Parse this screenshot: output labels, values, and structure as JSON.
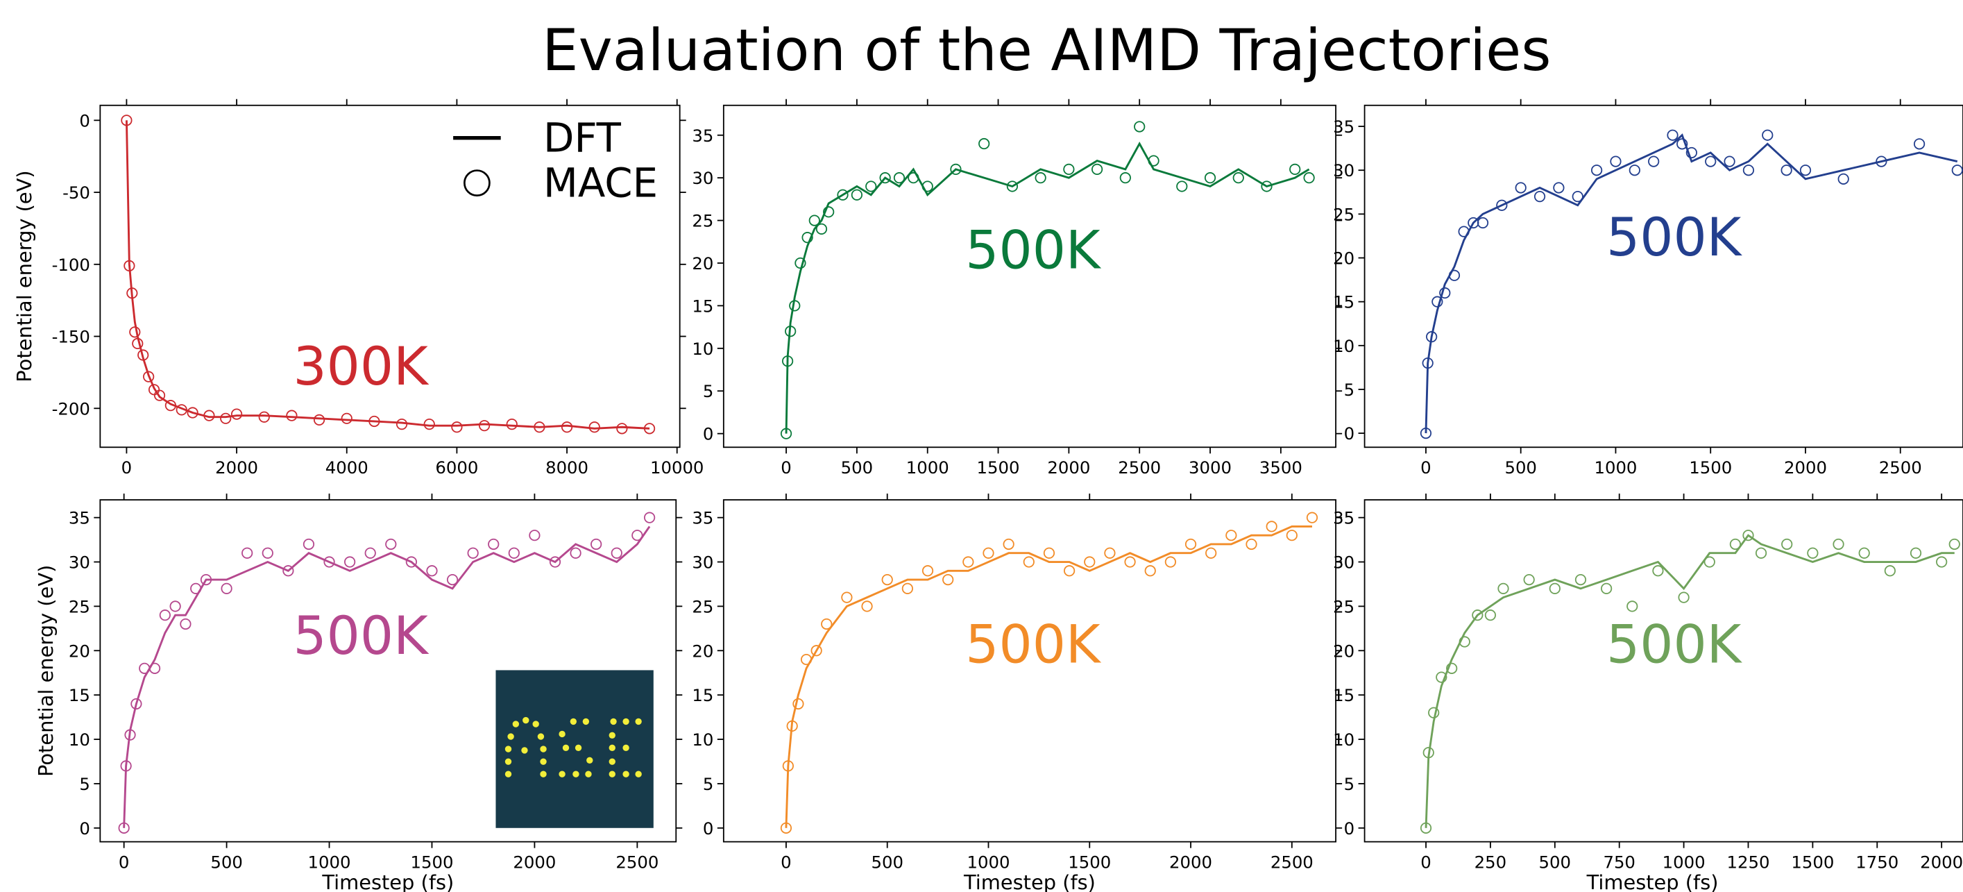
{
  "title": "Evaluation of the AIMD Trajectories",
  "chart_data": [
    {
      "type": "line",
      "annotation": "300K",
      "ylabel": "Potential energy (eV)",
      "legend": "upper right",
      "x": [
        0,
        50,
        100,
        150,
        200,
        300,
        400,
        500,
        600,
        800,
        1000,
        1200,
        1500,
        1800,
        2000,
        2500,
        3000,
        3500,
        4000,
        4500,
        5000,
        5500,
        6000,
        6500,
        7000,
        7500,
        8000,
        8500,
        9000,
        9500
      ],
      "series": [
        {
          "name": "DFT",
          "style": "line",
          "color": "#cc2a2f",
          "values": [
            0,
            -100,
            -122,
            -140,
            -150,
            -165,
            -177,
            -186,
            -192,
            -197,
            -200,
            -203,
            -206,
            -206,
            -205,
            -205,
            -206,
            -207,
            -208,
            -209,
            -210,
            -212,
            -212,
            -211,
            -212,
            -213,
            -212,
            -214,
            -213,
            -214
          ]
        },
        {
          "name": "MACE",
          "style": "marker",
          "color": "#cc2a2f",
          "values": [
            0,
            -101,
            -120,
            -147,
            -155,
            -163,
            -178,
            -187,
            -191,
            -198,
            -201,
            -203,
            -205,
            -207,
            -204,
            -206,
            -205,
            -208,
            -207,
            -209,
            -211,
            -211,
            -213,
            -212,
            -211,
            -213,
            -213,
            -213,
            -214,
            -214
          ]
        }
      ],
      "xlim": [
        -480,
        10050
      ],
      "ylim": [
        -227,
        10.4
      ],
      "xticks": [
        0,
        2000,
        4000,
        6000,
        8000,
        10000
      ],
      "yticks": [
        0,
        -50,
        -100,
        -150,
        -200
      ]
    },
    {
      "type": "line",
      "annotation": "500K",
      "x": [
        0,
        10,
        30,
        60,
        100,
        150,
        200,
        250,
        300,
        400,
        500,
        600,
        700,
        800,
        900,
        1000,
        1200,
        1400,
        1600,
        1800,
        2000,
        2200,
        2400,
        2500,
        2600,
        2800,
        3000,
        3200,
        3400,
        3600,
        3700
      ],
      "series": [
        {
          "style": "line",
          "color": "#0a7a3b",
          "values": [
            0,
            9,
            13,
            16,
            19,
            22,
            24,
            25,
            27,
            28,
            29,
            28,
            30,
            29,
            31,
            28,
            31,
            30,
            29,
            31,
            30,
            32,
            31,
            34,
            31,
            30,
            29,
            31,
            29,
            30,
            31
          ]
        },
        {
          "style": "marker",
          "color": "#0a7a3b",
          "values": [
            0,
            8.5,
            12,
            15,
            20,
            23,
            25,
            24,
            26,
            28,
            28,
            29,
            30,
            30,
            30,
            29,
            31,
            34,
            29,
            30,
            31,
            31,
            30,
            36,
            32,
            29,
            30,
            30,
            29,
            31,
            30
          ]
        }
      ],
      "xlim": [
        -443,
        3889
      ],
      "ylim": [
        -1.6,
        38.5
      ],
      "xticks": [
        0,
        500,
        1000,
        1500,
        2000,
        2500,
        3000,
        3500
      ],
      "yticks": [
        0,
        5,
        10,
        15,
        20,
        25,
        30,
        35
      ]
    },
    {
      "type": "line",
      "annotation": "500K",
      "x": [
        0,
        10,
        30,
        60,
        100,
        150,
        200,
        250,
        300,
        400,
        500,
        600,
        700,
        800,
        900,
        1000,
        1100,
        1200,
        1300,
        1350,
        1400,
        1500,
        1600,
        1700,
        1800,
        1900,
        2000,
        2200,
        2400,
        2600,
        2800
      ],
      "series": [
        {
          "style": "line",
          "color": "#233f8e",
          "values": [
            0,
            8,
            11,
            14,
            17,
            19,
            22,
            24,
            25,
            26,
            27,
            28,
            27,
            26,
            29,
            30,
            31,
            32,
            33,
            34,
            31,
            32,
            30,
            31,
            33,
            31,
            29,
            30,
            31,
            32,
            31
          ]
        },
        {
          "style": "marker",
          "color": "#233f8e",
          "values": [
            0,
            8,
            11,
            15,
            16,
            18,
            23,
            24,
            24,
            26,
            28,
            27,
            28,
            27,
            30,
            31,
            30,
            31,
            34,
            33,
            32,
            31,
            31,
            30,
            34,
            30,
            30,
            29,
            31,
            33,
            30
          ]
        }
      ],
      "xlim": [
        -323,
        2830
      ],
      "ylim": [
        -1.6,
        37.4
      ],
      "xticks": [
        0,
        500,
        1000,
        1500,
        2000,
        2500
      ],
      "yticks": [
        0,
        5,
        10,
        15,
        20,
        25,
        30,
        35
      ]
    },
    {
      "type": "line",
      "annotation": "500K",
      "ylabel": "Potential energy (eV)",
      "xlabel": "Timestep (fs)",
      "x": [
        0,
        10,
        30,
        60,
        100,
        150,
        200,
        250,
        300,
        350,
        400,
        500,
        600,
        700,
        800,
        900,
        1000,
        1100,
        1200,
        1300,
        1400,
        1500,
        1600,
        1700,
        1800,
        1900,
        2000,
        2100,
        2200,
        2300,
        2400,
        2500,
        2560
      ],
      "series": [
        {
          "style": "line",
          "color": "#b5488e",
          "values": [
            0,
            7,
            11,
            14,
            17,
            19,
            22,
            24,
            24,
            26,
            28,
            28,
            29,
            30,
            29,
            31,
            30,
            29,
            30,
            31,
            30,
            28,
            27,
            30,
            31,
            30,
            31,
            30,
            32,
            31,
            30,
            32,
            34
          ]
        },
        {
          "style": "marker",
          "color": "#b5488e",
          "values": [
            0,
            7,
            10.5,
            14,
            18,
            18,
            24,
            25,
            23,
            27,
            28,
            27,
            31,
            31,
            29,
            32,
            30,
            30,
            31,
            32,
            30,
            29,
            28,
            31,
            32,
            31,
            33,
            30,
            31,
            32,
            31,
            33,
            35
          ]
        }
      ],
      "xlim": [
        -116,
        2689
      ],
      "ylim": [
        -1.55,
        37
      ],
      "xticks": [
        0,
        500,
        1000,
        1500,
        2000,
        2500
      ],
      "yticks": [
        0,
        5,
        10,
        15,
        20,
        25,
        30,
        35
      ]
    },
    {
      "type": "line",
      "annotation": "500K",
      "xlabel": "Timestep (fs)",
      "x": [
        0,
        10,
        30,
        60,
        100,
        150,
        200,
        300,
        400,
        500,
        600,
        700,
        800,
        900,
        1000,
        1100,
        1200,
        1300,
        1400,
        1500,
        1600,
        1700,
        1800,
        1900,
        2000,
        2100,
        2200,
        2300,
        2400,
        2500,
        2600
      ],
      "series": [
        {
          "style": "line",
          "color": "#f28c28",
          "values": [
            0,
            7,
            12,
            15,
            18,
            20,
            22,
            25,
            26,
            27,
            28,
            28,
            29,
            29,
            30,
            31,
            31,
            30,
            30,
            29,
            30,
            31,
            30,
            31,
            31,
            32,
            32,
            33,
            33,
            34,
            34
          ]
        },
        {
          "style": "marker",
          "color": "#f28c28",
          "values": [
            0,
            7,
            11.5,
            14,
            19,
            20,
            23,
            26,
            25,
            28,
            27,
            29,
            28,
            30,
            31,
            32,
            30,
            31,
            29,
            30,
            31,
            30,
            29,
            30,
            32,
            31,
            33,
            32,
            34,
            33,
            35
          ]
        }
      ],
      "xlim": [
        -309,
        2717
      ],
      "ylim": [
        -1.55,
        37
      ],
      "xticks": [
        0,
        500,
        1000,
        1500,
        2000,
        2500
      ],
      "yticks": [
        0,
        5,
        10,
        15,
        20,
        25,
        30,
        35
      ]
    },
    {
      "type": "line",
      "annotation": "500K",
      "xlabel": "Timestep (fs)",
      "x": [
        0,
        10,
        30,
        60,
        100,
        150,
        200,
        250,
        300,
        400,
        500,
        600,
        700,
        800,
        900,
        1000,
        1100,
        1200,
        1250,
        1300,
        1400,
        1500,
        1600,
        1700,
        1800,
        1900,
        2000,
        2050
      ],
      "series": [
        {
          "style": "line",
          "color": "#6fa25a",
          "values": [
            0,
            8,
            12,
            16,
            19,
            22,
            24,
            25,
            26,
            27,
            28,
            27,
            28,
            29,
            30,
            27,
            31,
            31,
            33,
            32,
            31,
            30,
            31,
            30,
            30,
            30,
            31,
            31
          ]
        },
        {
          "style": "marker",
          "color": "#6fa25a",
          "values": [
            0,
            8.5,
            13,
            17,
            18,
            21,
            24,
            24,
            27,
            28,
            27,
            28,
            27,
            25,
            29,
            26,
            30,
            32,
            33,
            31,
            32,
            31,
            32,
            31,
            29,
            31,
            30,
            32
          ]
        }
      ],
      "xlim": [
        -238,
        2083
      ],
      "ylim": [
        -1.55,
        37
      ],
      "xticks": [
        0,
        250,
        500,
        750,
        1000,
        1250,
        1500,
        1750,
        2000
      ],
      "yticks": [
        0,
        5,
        10,
        15,
        20,
        25,
        30,
        35
      ]
    }
  ]
}
